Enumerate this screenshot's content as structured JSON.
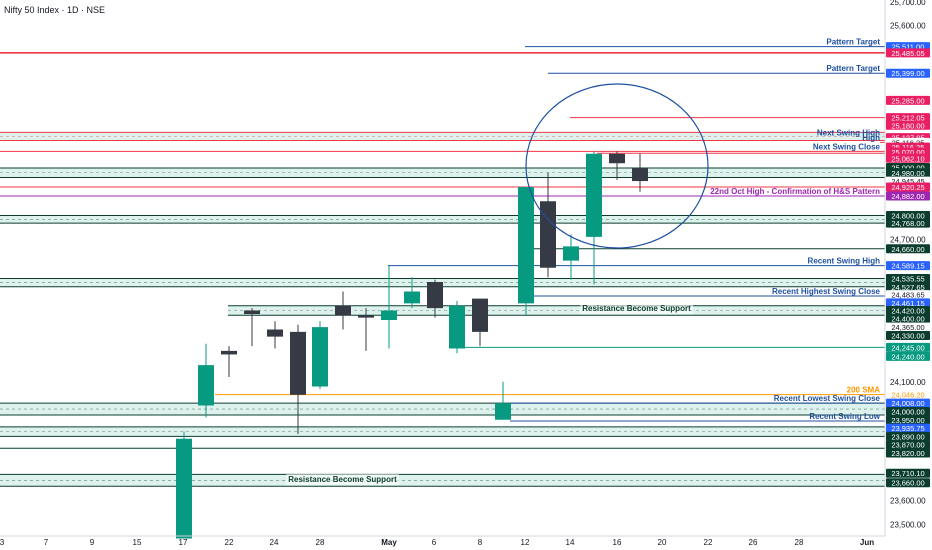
{
  "header": {
    "title": "Nifty 50 Index · 1D · NSE"
  },
  "colors": {
    "up": "#089981",
    "down": "#363a45",
    "pink": "#f23645",
    "pinklabel": "#e91e63",
    "blue": "#1e50a0",
    "bluelabel": "#2962ff",
    "darkgreen": "#0b3d2e",
    "zone": "#d8f0ea",
    "purple": "#9c27b0",
    "orange": "#ff9800",
    "teal": "#089981"
  },
  "chart_data": {
    "type": "candlestick",
    "title": "Nifty 50 Index · 1D · NSE",
    "y_ticks": [
      25700,
      25600,
      24700,
      24100,
      23600,
      23500
    ],
    "x_ticks": [
      "3",
      "7",
      "9",
      "15",
      "17",
      "22",
      "24",
      "28",
      "May",
      "6",
      "8",
      "12",
      "14",
      "16",
      "20",
      "22",
      "26",
      "28",
      "Jun"
    ],
    "candles": [
      {
        "date": "Apr 17",
        "open": 23440,
        "high": 23890,
        "low": 23440,
        "close": 23860
      },
      {
        "date": "Apr 21",
        "open": 24000,
        "high": 24260,
        "low": 23950,
        "close": 24170
      },
      {
        "date": "Apr 22",
        "open": 24230,
        "high": 24250,
        "low": 24120,
        "close": 24215
      },
      {
        "date": "Apr 23",
        "open": 24400,
        "high": 24410,
        "low": 24250,
        "close": 24385
      },
      {
        "date": "Apr 24",
        "open": 24320,
        "high": 24355,
        "low": 24240,
        "close": 24290
      },
      {
        "date": "Apr 25",
        "open": 24310,
        "high": 24340,
        "low": 23880,
        "close": 24045
      },
      {
        "date": "Apr 28",
        "open": 24080,
        "high": 24355,
        "low": 24070,
        "close": 24330
      },
      {
        "date": "Apr 29",
        "open": 24420,
        "high": 24480,
        "low": 24320,
        "close": 24380
      },
      {
        "date": "Apr 30",
        "open": 24380,
        "high": 24410,
        "low": 24230,
        "close": 24370
      },
      {
        "date": "May 2",
        "open": 24360,
        "high": 24590,
        "low": 24240,
        "close": 24400
      },
      {
        "date": "May 5",
        "open": 24430,
        "high": 24540,
        "low": 24410,
        "close": 24480
      },
      {
        "date": "May 6",
        "open": 24520,
        "high": 24530,
        "low": 24370,
        "close": 24410
      },
      {
        "date": "May 7",
        "open": 24240,
        "high": 24440,
        "low": 24220,
        "close": 24420
      },
      {
        "date": "May 8",
        "open": 24450,
        "high": 24450,
        "low": 24250,
        "close": 24310
      },
      {
        "date": "May 9",
        "open": 23940,
        "high": 24100,
        "low": 23940,
        "close": 24010
      },
      {
        "date": "May 12",
        "open": 24430,
        "high": 24920,
        "low": 24380,
        "close": 24920
      },
      {
        "date": "May 13",
        "open": 24860,
        "high": 24980,
        "low": 24540,
        "close": 24580
      },
      {
        "date": "May 14",
        "open": 24610,
        "high": 24720,
        "low": 24530,
        "close": 24670
      },
      {
        "date": "May 15",
        "open": 24710,
        "high": 25070,
        "low": 24510,
        "close": 25060
      },
      {
        "date": "May 16",
        "open": 25060,
        "high": 25070,
        "low": 24950,
        "close": 25020
      },
      {
        "date": "May 19",
        "open": 25000,
        "high": 25060,
        "low": 24900,
        "close": 24945
      }
    ]
  },
  "price_labels": [
    {
      "value": "25,511.00",
      "v": 25511,
      "style": "bluelabel"
    },
    {
      "value": "25,485.05",
      "v": 25485,
      "style": "pinklabel"
    },
    {
      "value": "25,399.00",
      "v": 25399,
      "style": "bluelabel"
    },
    {
      "value": "25,285.00",
      "v": 25285,
      "style": "pinklabel"
    },
    {
      "value": "25,212.05",
      "v": 25212,
      "style": "pinklabel"
    },
    {
      "value": "25,180.00",
      "v": 25180,
      "style": "pinklabel"
    },
    {
      "value": "25,127.95",
      "v": 25128,
      "style": "pinklabel"
    },
    {
      "value": "25,116.25",
      "v": 25108,
      "style": "white"
    },
    {
      "value": "25,116.25",
      "v": 25088,
      "style": "pinklabel"
    },
    {
      "value": "25,070.00",
      "v": 25067,
      "style": "pinklabel"
    },
    {
      "value": "25,062.10",
      "v": 25041,
      "style": "pinklabel"
    },
    {
      "value": "25,000.00",
      "v": 25002,
      "style": "darkgreen"
    },
    {
      "value": "24,980.00",
      "v": 24980,
      "style": "darkgreen"
    },
    {
      "value": "24,945.45",
      "v": 24945,
      "style": "white"
    },
    {
      "value": "24,920.25",
      "v": 24920,
      "style": "pinklabel"
    },
    {
      "value": "24,882.00",
      "v": 24882,
      "style": "purple"
    },
    {
      "value": "24,800.00",
      "v": 24800,
      "style": "darkgreen"
    },
    {
      "value": "24,768.00",
      "v": 24768,
      "style": "darkgreen"
    },
    {
      "value": "24,660.00",
      "v": 24660,
      "style": "darkgreen"
    },
    {
      "value": "24,589.15",
      "v": 24589,
      "style": "bluelabel"
    },
    {
      "value": "24,535.55",
      "v": 24535,
      "style": "darkgreen"
    },
    {
      "value": "24,527.65",
      "v": 24500,
      "style": "darkgreen"
    },
    {
      "value": "24,483.65",
      "v": 24467,
      "style": "white"
    },
    {
      "value": "24,461.15",
      "v": 24432,
      "style": "bluelabel"
    },
    {
      "value": "24,420.00",
      "v": 24400,
      "style": "darkgreen"
    },
    {
      "value": "24,400.00",
      "v": 24367,
      "style": "darkgreen"
    },
    {
      "value": "24,365.00",
      "v": 24330,
      "style": "white"
    },
    {
      "value": "24,330.00",
      "v": 24295,
      "style": "darkgreen"
    },
    {
      "value": "24,245.00",
      "v": 24245,
      "style": "teal"
    },
    {
      "value": "24,240.00",
      "v": 24207,
      "style": "teal"
    },
    {
      "value": "24,046.20",
      "v": 24046,
      "style": "orange"
    },
    {
      "value": "24,008.00",
      "v": 24010,
      "style": "bluelabel"
    },
    {
      "value": "24,000.00",
      "v": 23975,
      "style": "darkgreen"
    },
    {
      "value": "23,950.00",
      "v": 23940,
      "style": "darkgreen"
    },
    {
      "value": "23,935.75",
      "v": 23905,
      "style": "bluelabel"
    },
    {
      "value": "23,890.00",
      "v": 23870,
      "style": "darkgreen"
    },
    {
      "value": "23,870.00",
      "v": 23835,
      "style": "darkgreen"
    },
    {
      "value": "23,820.00",
      "v": 23800,
      "style": "darkgreen"
    },
    {
      "value": "23,710.10",
      "v": 23715,
      "style": "darkgreen"
    },
    {
      "value": "23,660.00",
      "v": 23675,
      "style": "darkgreen"
    }
  ],
  "levels": [
    {
      "text": "Pattern Target",
      "v": 25511,
      "start": 525,
      "color": "blue",
      "textColor": "blue"
    },
    {
      "text": "",
      "v": 25485,
      "start": 0,
      "color": "pink",
      "textColor": "pink",
      "thick": true
    },
    {
      "text": "Pattern Target",
      "v": 25399,
      "start": 548,
      "color": "blue",
      "textColor": "blue"
    },
    {
      "text": "",
      "v": 25212,
      "start": 570,
      "color": "pink",
      "textColor": "pink"
    },
    {
      "text": "Next Swing High",
      "v": 25128,
      "start": 0,
      "color": "pink",
      "textColor": "blue",
      "zone": [
        25150,
        25116
      ]
    },
    {
      "text": "High",
      "v": 25108,
      "start": 880,
      "color": "pink",
      "textColor": "blue"
    },
    {
      "text": "Next Swing Close",
      "v": 25070,
      "start": 0,
      "color": "pink",
      "textColor": "blue"
    },
    {
      "text": "",
      "v": 25062,
      "start": 597,
      "color": "pink",
      "textColor": "pink"
    },
    {
      "text": "",
      "v": 25000,
      "start": 0,
      "color": "darkgreen",
      "textColor": "darkgreen",
      "zone": [
        25000,
        24960
      ]
    },
    {
      "text": "",
      "v": 24920,
      "start": 0,
      "color": "pink",
      "textColor": "pink"
    },
    {
      "text": "22nd Oct High - Confirmation of H&S Pattern",
      "v": 24882,
      "start": 0,
      "color": "purple",
      "textColor": "purple"
    },
    {
      "text": "",
      "v": 24800,
      "start": 0,
      "color": "darkgreen",
      "textColor": "darkgreen",
      "zone": [
        24800,
        24768
      ]
    },
    {
      "text": "",
      "v": 24660,
      "start": 525,
      "color": "darkgreen",
      "textColor": "darkgreen"
    },
    {
      "text": "Recent Swing High",
      "v": 24589,
      "start": 388,
      "color": "blue",
      "textColor": "blue"
    },
    {
      "text": "",
      "v": 24535,
      "start": 0,
      "color": "darkgreen",
      "textColor": "darkgreen",
      "zone": [
        24535,
        24500
      ]
    },
    {
      "text": "Recent Highest Swing Close",
      "v": 24461,
      "start": 533,
      "color": "blue",
      "textColor": "blue"
    },
    {
      "text": "Resistance Become Support",
      "v": 24410,
      "start": 228,
      "color": "darkgreen",
      "textColor": "darkgreen",
      "zone": [
        24420,
        24380
      ],
      "center": true
    },
    {
      "text": "",
      "v": 24245,
      "start": 457,
      "color": "teal",
      "textColor": "teal"
    },
    {
      "text": "200 SMA",
      "v": 24046,
      "start": 215,
      "color": "orange",
      "textColor": "orange"
    },
    {
      "text": "Recent Lowest Swing Close",
      "v": 24010,
      "start": 510,
      "color": "blue",
      "textColor": "blue"
    },
    {
      "text": "",
      "v": 23990,
      "start": 0,
      "color": "darkgreen",
      "textColor": "darkgreen",
      "zone": [
        24010,
        23960
      ]
    },
    {
      "text": "Recent Swing Low",
      "v": 23935,
      "start": 510,
      "color": "blue",
      "textColor": "blue"
    },
    {
      "text": "",
      "v": 23880,
      "start": 0,
      "color": "darkgreen",
      "textColor": "darkgreen",
      "zone": [
        23910,
        23870
      ]
    },
    {
      "text": "",
      "v": 23820,
      "start": 0,
      "color": "darkgreen",
      "textColor": "darkgreen"
    },
    {
      "text": "Resistance Become Support",
      "v": 23690,
      "start": 0,
      "color": "darkgreen",
      "textColor": "darkgreen",
      "zone": [
        23710,
        23660
      ],
      "center": true
    }
  ]
}
